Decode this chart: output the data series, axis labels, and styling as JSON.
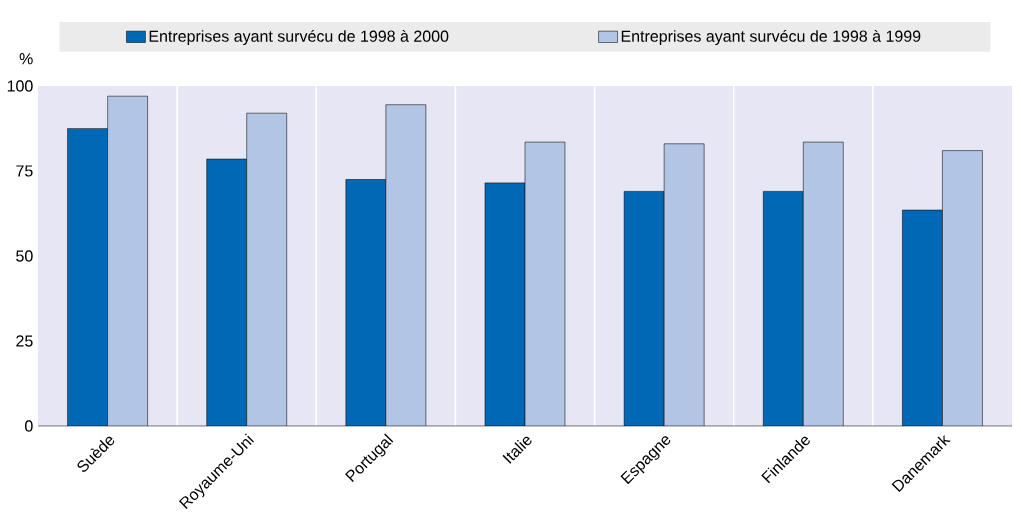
{
  "chart_data": {
    "type": "bar",
    "ylabel": "%",
    "categories": [
      "Suède",
      "Royaume-Uni",
      "Portugal",
      "Italie",
      "Espagne",
      "Finlande",
      "Danemark"
    ],
    "series": [
      {
        "name": "Entreprises ayant survécu de 1998 à 2000",
        "color": "#0068b4",
        "values": [
          87.5,
          78.5,
          72.5,
          71.5,
          69,
          69,
          63.5
        ]
      },
      {
        "name": "Entreprises ayant survécu de 1998 à 1999",
        "color": "#b3c5e4",
        "values": [
          97,
          92,
          94.5,
          83.5,
          83,
          83.5,
          81
        ]
      }
    ],
    "ylim": [
      0,
      100
    ],
    "yticks": [
      0,
      25,
      50,
      75,
      100
    ],
    "grid": "x",
    "legend": "top"
  }
}
